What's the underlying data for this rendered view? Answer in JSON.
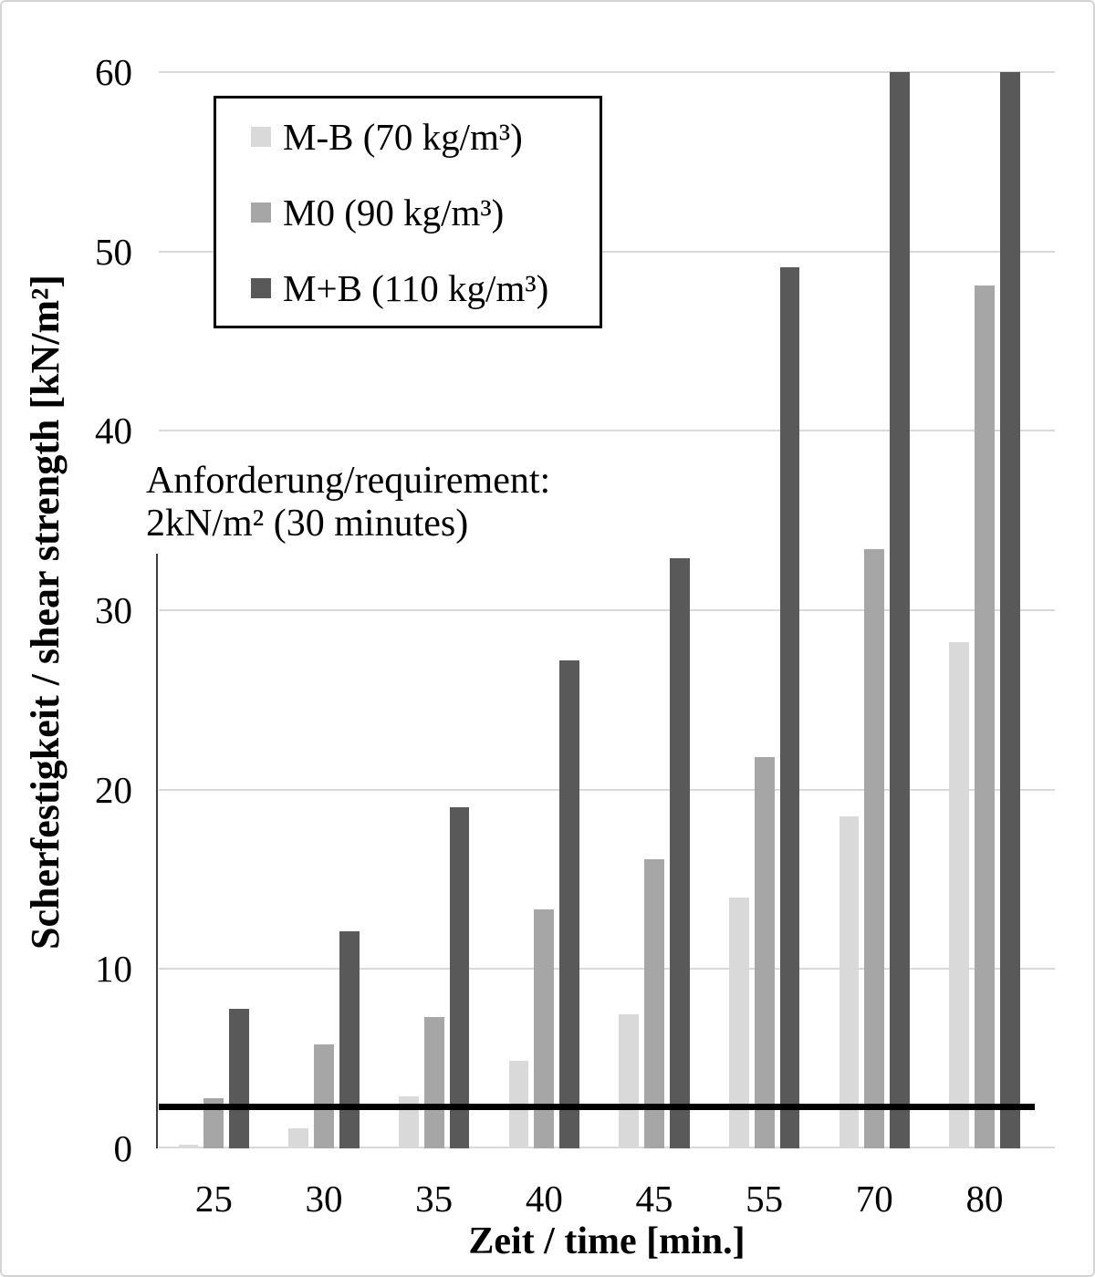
{
  "figure": {
    "background": "#ffffff",
    "border_color": "#d5d5d5"
  },
  "chart_data": {
    "type": "bar",
    "title": "",
    "xlabel": "Zeit / time [min.]",
    "ylabel": "Scherfestigkeit / shear strength [kN/m²]",
    "categories": [
      "25",
      "30",
      "35",
      "40",
      "45",
      "55",
      "70",
      "80"
    ],
    "series": [
      {
        "name": "M-B (70 kg/m³)",
        "color": "#d9d9d9",
        "values": [
          0.2,
          1.1,
          2.9,
          4.9,
          7.5,
          14.0,
          18.5,
          28.2
        ]
      },
      {
        "name": "M0 (90 kg/m³)",
        "color": "#a6a6a6",
        "values": [
          2.8,
          5.8,
          7.3,
          13.3,
          16.1,
          21.8,
          33.4,
          48.1
        ]
      },
      {
        "name": "M+B (110 kg/m³)",
        "color": "#595959",
        "values": [
          7.8,
          12.1,
          19.0,
          27.2,
          32.9,
          49.1,
          60.0,
          60.0
        ]
      }
    ],
    "ylim": [
      0,
      60
    ],
    "yticks": [
      0,
      10,
      20,
      30,
      40,
      50,
      60
    ],
    "grid": "horizontal",
    "gridline_color": "#d9d9d9",
    "legend_position": "top-left",
    "annotation": {
      "line1": "Anforderung/requirement:",
      "line2": "2kN/m² (30 minutes)"
    },
    "threshold_line": {
      "value": 2.3,
      "color": "#000000"
    }
  }
}
